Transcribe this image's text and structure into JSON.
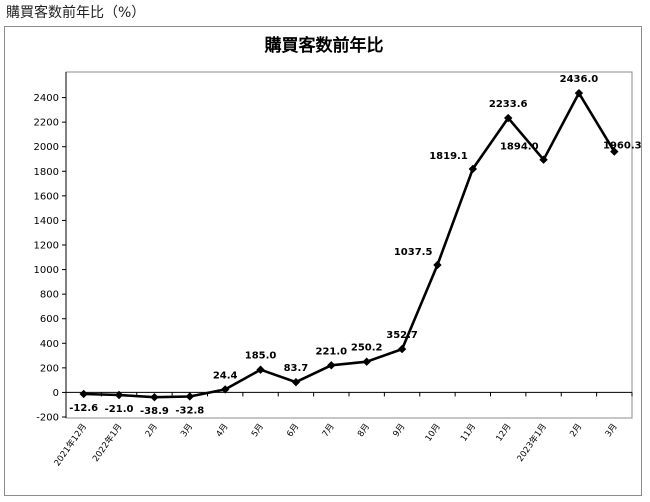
{
  "page": {
    "caption": "購買客数前年比（%）"
  },
  "chart_data": {
    "type": "line",
    "title": "購買客数前年比",
    "xlabel": "",
    "ylabel": "",
    "categories": [
      "2021年12月",
      "2022年1月",
      "2月",
      "3月",
      "4月",
      "5月",
      "6月",
      "7月",
      "8月",
      "9月",
      "10月",
      "11月",
      "12月",
      "2023年1月",
      "2月",
      "3月"
    ],
    "series": [
      {
        "values": [
          -12.6,
          -21.0,
          -38.9,
          -32.8,
          24.4,
          185.0,
          83.7,
          221.0,
          250.2,
          352.7,
          1037.5,
          1819.1,
          2233.6,
          1894.0,
          2436.0,
          1960.3
        ]
      }
    ],
    "data_labels": [
      "-12.6",
      "-21.0",
      "-38.9",
      "-32.8",
      "24.4",
      "185.0",
      "83.7",
      "221.0",
      "250.2",
      "352.7",
      "1037.5",
      "1819.1",
      "2233.6",
      "1894.0",
      "2436.0",
      "1960.3"
    ],
    "yticks": [
      -200,
      0,
      200,
      400,
      600,
      800,
      1000,
      1200,
      1400,
      1600,
      1800,
      2000,
      2200,
      2400
    ],
    "ylim": [
      -200,
      2600
    ],
    "grid": false,
    "legend": "none",
    "colors": {
      "line": "#000000",
      "axis": "#000000",
      "plot_border": "#8c8c8c"
    }
  }
}
